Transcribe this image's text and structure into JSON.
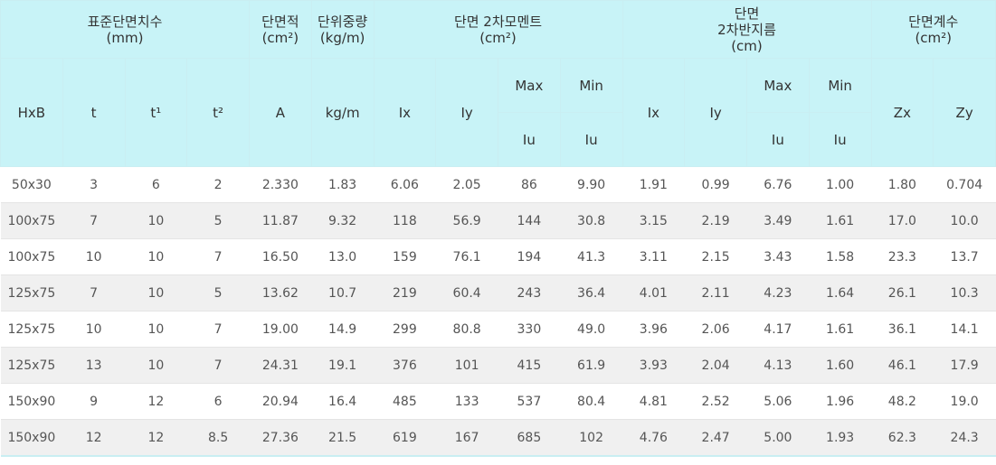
{
  "header": {
    "groups": [
      {
        "lines": [
          "표준단면치수",
          "(mm)"
        ]
      },
      {
        "lines": [
          "단면적",
          "(cm²)"
        ]
      },
      {
        "lines": [
          "단위중량",
          "(kg/m)"
        ]
      },
      {
        "lines": [
          "단면 2차모멘트",
          "(cm²)"
        ]
      },
      {
        "lines": [
          "단면",
          "2차반지름",
          "(cm)"
        ]
      },
      {
        "lines": [
          "단면계수",
          "(cm²)"
        ]
      }
    ],
    "columns": [
      "HxB",
      "t",
      "t¹",
      "t²",
      "A",
      "kg/m",
      "Ix",
      "Iy",
      "Max",
      "Min",
      "Ix",
      "Iy",
      "Max",
      "Min",
      "Zx",
      "Zy"
    ],
    "sub": [
      "Iu",
      "Iu",
      "Iu",
      "Iu"
    ]
  },
  "table": {
    "rows": [
      [
        "50x30",
        "3",
        "6",
        "2",
        "2.330",
        "1.83",
        "6.06",
        "2.05",
        "86",
        "9.90",
        "1.91",
        "0.99",
        "6.76",
        "1.00",
        "1.80",
        "0.704"
      ],
      [
        "100x75",
        "7",
        "10",
        "5",
        "11.87",
        "9.32",
        "118",
        "56.9",
        "144",
        "30.8",
        "3.15",
        "2.19",
        "3.49",
        "1.61",
        "17.0",
        "10.0"
      ],
      [
        "100x75",
        "10",
        "10",
        "7",
        "16.50",
        "13.0",
        "159",
        "76.1",
        "194",
        "41.3",
        "3.11",
        "2.15",
        "3.43",
        "1.58",
        "23.3",
        "13.7"
      ],
      [
        "125x75",
        "7",
        "10",
        "5",
        "13.62",
        "10.7",
        "219",
        "60.4",
        "243",
        "36.4",
        "4.01",
        "2.11",
        "4.23",
        "1.64",
        "26.1",
        "10.3"
      ],
      [
        "125x75",
        "10",
        "10",
        "7",
        "19.00",
        "14.9",
        "299",
        "80.8",
        "330",
        "49.0",
        "3.96",
        "2.06",
        "4.17",
        "1.61",
        "36.1",
        "14.1"
      ],
      [
        "125x75",
        "13",
        "10",
        "7",
        "24.31",
        "19.1",
        "376",
        "101",
        "415",
        "61.9",
        "3.93",
        "2.04",
        "4.13",
        "1.60",
        "46.1",
        "17.9"
      ],
      [
        "150x90",
        "9",
        "12",
        "6",
        "20.94",
        "16.4",
        "485",
        "133",
        "537",
        "80.4",
        "4.81",
        "2.52",
        "5.06",
        "1.96",
        "48.2",
        "19.0"
      ],
      [
        "150x90",
        "12",
        "12",
        "8.5",
        "27.36",
        "21.5",
        "619",
        "167",
        "685",
        "102",
        "4.76",
        "2.47",
        "5.00",
        "1.93",
        "62.3",
        "24.3"
      ]
    ]
  }
}
